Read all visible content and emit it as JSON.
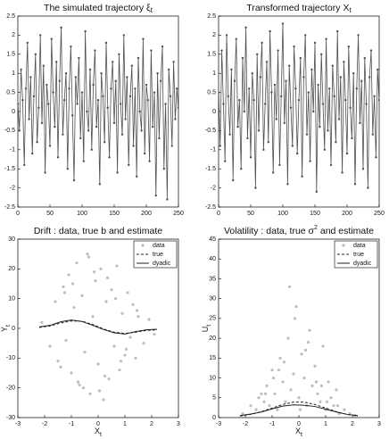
{
  "chart_data": [
    {
      "type": "line",
      "title": "The simulated trajectory ξ",
      "title_subscript": "t",
      "color": "#505050",
      "xlim": [
        0,
        250
      ],
      "xticks": [
        0,
        50,
        100,
        150,
        200,
        250
      ],
      "ylim": [
        -2.5,
        2.5
      ],
      "yticks": [
        -2.5,
        -2,
        -1.5,
        -1,
        -0.5,
        0,
        0.5,
        1,
        1.5,
        2,
        2.5
      ],
      "x": [
        0,
        2.5,
        5,
        7.5,
        10,
        12.5,
        15,
        17.5,
        20,
        22.5,
        25,
        27.5,
        30,
        32.5,
        35,
        37.5,
        40,
        42.5,
        45,
        47.5,
        50,
        52.5,
        55,
        57.5,
        60,
        62.5,
        65,
        67.5,
        70,
        72.5,
        75,
        77.5,
        80,
        82.5,
        85,
        87.5,
        90,
        92.5,
        95,
        97.5,
        100,
        102.5,
        105,
        107.5,
        110,
        112.5,
        115,
        117.5,
        120,
        122.5,
        125,
        127.5,
        130,
        132.5,
        135,
        137.5,
        140,
        142.5,
        145,
        147.5,
        150,
        152.5,
        155,
        157.5,
        160,
        162.5,
        165,
        167.5,
        170,
        172.5,
        175,
        177.5,
        180,
        182.5,
        185,
        187.5,
        190,
        192.5,
        195,
        197.5,
        200,
        202.5,
        205,
        207.5,
        210,
        212.5,
        215,
        217.5,
        220,
        222.5,
        225,
        227.5,
        230,
        232.5,
        235,
        237.5,
        240,
        242.5,
        245,
        247.5,
        250
      ],
      "values": [
        0.2,
        -0.5,
        1.1,
        0.3,
        -1.4,
        0.6,
        1.8,
        -0.2,
        0.9,
        -1.1,
        0.4,
        1.5,
        -0.8,
        0.1,
        2.0,
        -0.3,
        1.2,
        -1.6,
        0.7,
        0.2,
        -0.9,
        1.9,
        0.5,
        -0.4,
        1.3,
        -1.2,
        0.8,
        2.2,
        -0.6,
        0.3,
        1.0,
        -1.5,
        0.6,
        1.7,
        -0.1,
        -1.8,
        0.9,
        0.2,
        1.4,
        -0.7,
        0.5,
        -1.3,
        2.1,
        0.0,
        -0.5,
        1.1,
        -1.0,
        0.7,
        1.6,
        -0.4,
        0.3,
        -1.9,
        1.0,
        0.4,
        -0.8,
        1.8,
        0.1,
        -1.2,
        0.6,
        1.3,
        -0.3,
        0.8,
        -1.6,
        1.5,
        0.2,
        -0.6,
        2.0,
        -0.2,
        0.9,
        -1.4,
        0.4,
        1.2,
        -0.9,
        0.6,
        -1.7,
        1.4,
        0.0,
        -0.5,
        1.9,
        -1.1,
        0.7,
        0.3,
        -1.3,
        1.6,
        -0.4,
        0.5,
        -2.2,
        1.0,
        -0.7,
        0.8,
        1.7,
        -1.5,
        0.2,
        -2.3,
        1.1,
        0.4,
        -0.9,
        1.3,
        -0.2,
        0.6,
        0.1
      ]
    },
    {
      "type": "line",
      "title": "Transformed trajectory X",
      "title_subscript": "t",
      "color": "#505050",
      "xlim": [
        0,
        250
      ],
      "xticks": [
        0,
        50,
        100,
        150,
        200,
        250
      ],
      "ylim": [
        -2.5,
        2.5
      ],
      "yticks": [
        -2.5,
        -2,
        -1.5,
        -1,
        -0.5,
        0,
        0.5,
        1,
        1.5,
        2,
        2.5
      ],
      "x": [
        0,
        2.5,
        5,
        7.5,
        10,
        12.5,
        15,
        17.5,
        20,
        22.5,
        25,
        27.5,
        30,
        32.5,
        35,
        37.5,
        40,
        42.5,
        45,
        47.5,
        50,
        52.5,
        55,
        57.5,
        60,
        62.5,
        65,
        67.5,
        70,
        72.5,
        75,
        77.5,
        80,
        82.5,
        85,
        87.5,
        90,
        92.5,
        95,
        97.5,
        100,
        102.5,
        105,
        107.5,
        110,
        112.5,
        115,
        117.5,
        120,
        122.5,
        125,
        127.5,
        130,
        132.5,
        135,
        137.5,
        140,
        142.5,
        145,
        147.5,
        150,
        152.5,
        155,
        157.5,
        160,
        162.5,
        165,
        167.5,
        170,
        172.5,
        175,
        177.5,
        180,
        182.5,
        185,
        187.5,
        190,
        192.5,
        195,
        197.5,
        200,
        202.5,
        205,
        207.5,
        210,
        212.5,
        215,
        217.5,
        220,
        222.5,
        225,
        227.5,
        230,
        232.5,
        235,
        237.5,
        240,
        242.5,
        245,
        247.5,
        250
      ],
      "values": [
        0.5,
        -0.9,
        1.6,
        0.2,
        -1.3,
        2.0,
        0.4,
        -0.6,
        1.1,
        -1.8,
        0.8,
        1.9,
        -0.4,
        0.3,
        -1.5,
        1.4,
        0.0,
        2.2,
        -0.7,
        0.6,
        -1.2,
        1.0,
        0.3,
        -2.0,
        1.5,
        -0.5,
        0.9,
        1.8,
        -1.0,
        0.2,
        1.3,
        -0.8,
        2.1,
        0.5,
        -1.6,
        0.7,
        -0.2,
        1.6,
        -1.4,
        0.4,
        2.3,
        -0.3,
        0.8,
        -1.9,
        1.2,
        0.1,
        -0.9,
        1.7,
        0.6,
        -1.1,
        0.3,
        1.4,
        -1.7,
        0.9,
        2.0,
        -0.6,
        0.5,
        -1.3,
        1.1,
        0.0,
        1.8,
        -2.1,
        0.7,
        -0.4,
        1.5,
        0.2,
        -1.0,
        1.9,
        -0.5,
        0.6,
        -1.4,
        1.2,
        0.4,
        -0.8,
        2.1,
        -0.2,
        0.9,
        -1.6,
        1.3,
        0.3,
        -1.1,
        1.7,
        0.1,
        -0.7,
        1.0,
        -1.9,
        0.6,
        2.0,
        -0.3,
        0.8,
        -1.5,
        1.4,
        0.2,
        -2.0,
        0.9,
        1.6,
        -0.6,
        0.4,
        -1.2,
        1.1,
        0.3
      ]
    },
    {
      "type": "scatter",
      "title": "Drift : data, true b and estimate",
      "xlabel": "X",
      "xlabel_subscript": "t",
      "ylabel": "Y",
      "ylabel_subscript": "t",
      "xlim": [
        -3,
        3
      ],
      "xticks": [
        -3,
        -2,
        -1,
        0,
        1,
        2,
        3
      ],
      "ylim": [
        -30,
        30
      ],
      "yticks": [
        -30,
        -20,
        -10,
        0,
        10,
        20,
        30
      ],
      "legend": "upper right",
      "series": [
        {
          "name": "data",
          "kind": "points",
          "color": "#bdbdbd",
          "x": [
            -2.1,
            -1.8,
            -1.6,
            -1.5,
            -1.3,
            -1.2,
            -1.1,
            -1.0,
            -0.9,
            -0.8,
            -0.7,
            -0.6,
            -0.5,
            -0.4,
            -0.3,
            -0.2,
            -0.1,
            0.0,
            0.1,
            0.2,
            0.3,
            0.4,
            0.5,
            0.6,
            0.7,
            0.8,
            0.9,
            1.0,
            1.1,
            1.2,
            1.3,
            1.4,
            1.5,
            1.7,
            1.9,
            2.1,
            -1.4,
            -0.95,
            -0.55,
            -0.15,
            0.25,
            0.65,
            1.05,
            1.45,
            -0.75,
            0.35,
            -1.25,
            0.85,
            -0.35,
            0.05
          ],
          "values": [
            2,
            -6,
            9,
            -11,
            14,
            -4,
            18,
            -15,
            7,
            22,
            -19,
            11,
            -8,
            25,
            -22,
            4,
            16,
            -12,
            20,
            -24,
            9,
            -17,
            13,
            -6,
            21,
            -14,
            5,
            -9,
            12,
            -3,
            8,
            -10,
            4,
            -5,
            3,
            -2,
            -13,
            15,
            -20,
            19,
            -16,
            10,
            -7,
            6,
            -18,
            17,
            12,
            -11,
            24,
            -21
          ]
        },
        {
          "name": "true",
          "kind": "line",
          "dash": true,
          "color": "#222222",
          "x": [
            -2.2,
            -1.8,
            -1.4,
            -1,
            -0.6,
            -0.2,
            0.2,
            0.6,
            1,
            1.4,
            1.8,
            2.2
          ],
          "values": [
            0.3,
            0.8,
            1.8,
            2.5,
            2.4,
            1.3,
            -0.2,
            -1.3,
            -1.7,
            -1.3,
            -0.7,
            -0.5
          ]
        },
        {
          "name": "dyadic",
          "kind": "line",
          "dash": false,
          "color": "#222222",
          "x": [
            -2.2,
            -1.8,
            -1.4,
            -1,
            -0.6,
            -0.2,
            0.2,
            0.6,
            1,
            1.4,
            1.8,
            2.2
          ],
          "values": [
            0.5,
            1.0,
            2.2,
            2.8,
            2.3,
            1.0,
            -0.4,
            -1.5,
            -1.9,
            -1.1,
            -0.5,
            -0.3
          ]
        }
      ]
    },
    {
      "type": "scatter",
      "title": "Volatility : data, true σ",
      "title_superscript": "2",
      "title_end": " and estimate",
      "xlabel": "X",
      "xlabel_subscript": "t",
      "ylabel": "U",
      "ylabel_subscript": "t",
      "xlim": [
        -3,
        3
      ],
      "xticks": [
        -3,
        -2,
        -1,
        0,
        1,
        2,
        3
      ],
      "ylim": [
        0,
        45
      ],
      "yticks": [
        0,
        5,
        10,
        15,
        20,
        25,
        30,
        35,
        40,
        45
      ],
      "legend": "upper right",
      "series": [
        {
          "name": "data",
          "kind": "points",
          "color": "#bdbdbd",
          "x": [
            -2.1,
            -1.8,
            -1.6,
            -1.5,
            -1.3,
            -1.2,
            -1.1,
            -1.0,
            -0.9,
            -0.8,
            -0.7,
            -0.6,
            -0.5,
            -0.4,
            -0.3,
            -0.2,
            -0.1,
            0.0,
            0.1,
            0.2,
            0.3,
            0.4,
            0.5,
            0.6,
            0.7,
            0.8,
            0.9,
            1.0,
            1.1,
            1.2,
            1.3,
            1.4,
            1.5,
            1.7,
            1.9,
            2.1,
            -1.4,
            -0.95,
            -0.55,
            -0.15,
            0.25,
            0.65,
            1.05,
            1.45,
            -0.75,
            0.35,
            -1.25,
            0.85,
            -0.35,
            0.05
          ],
          "values": [
            1,
            3,
            2,
            5,
            4,
            8,
            3,
            12,
            6,
            2,
            15,
            9,
            4,
            20,
            7,
            11,
            28,
            5,
            16,
            10,
            3,
            22,
            8,
            13,
            6,
            4,
            18,
            2,
            9,
            5,
            3,
            7,
            1,
            2,
            1,
            0.5,
            6,
            10,
            14,
            25,
            17,
            9,
            4,
            3,
            12,
            19,
            6,
            8,
            33,
            2
          ]
        },
        {
          "name": "true",
          "kind": "line",
          "dash": true,
          "color": "#222222",
          "x": [
            -2.2,
            -1.8,
            -1.4,
            -1,
            -0.6,
            -0.2,
            0.2,
            0.6,
            1,
            1.4,
            1.8,
            2.2
          ],
          "values": [
            0.4,
            0.8,
            1.5,
            2.4,
            3.3,
            3.9,
            3.9,
            3.3,
            2.4,
            1.5,
            0.8,
            0.4
          ]
        },
        {
          "name": "dyadic",
          "kind": "line",
          "dash": false,
          "color": "#222222",
          "x": [
            -2.2,
            -1.8,
            -1.4,
            -1,
            -0.6,
            -0.2,
            0.2,
            0.6,
            1,
            1.4,
            1.8,
            2.2
          ],
          "values": [
            0.5,
            0.9,
            1.4,
            2.2,
            2.9,
            3.2,
            3.1,
            2.8,
            2.1,
            1.4,
            0.8,
            0.5
          ]
        }
      ]
    }
  ]
}
